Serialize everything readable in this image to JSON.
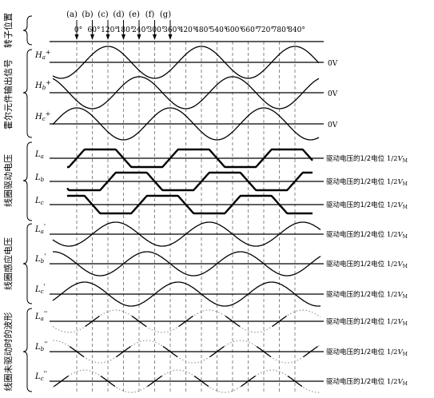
{
  "sections": {
    "rotor": "转子位置",
    "hall": "霍尔元件输出信号",
    "drive": "线圈驱动电压",
    "induced": "线圈感应电压",
    "undriven": "线圈未驱动时的波形"
  },
  "markers": [
    "(a)",
    "(b)",
    "(c)",
    "(d)",
    "(e)",
    "(f)",
    "(g)"
  ],
  "angles": [
    "0°",
    "60°",
    "120°",
    "180°",
    "240°",
    "300°",
    "360°",
    "420°",
    "480°",
    "540°",
    "600°",
    "660°",
    "720°",
    "780°",
    "840°"
  ],
  "hall_labels": [
    "Ha+",
    "Hb+",
    "Hc+"
  ],
  "zero_label": "0V",
  "drive_labels": [
    "La",
    "Lb",
    "Lc"
  ],
  "induced_labels": [
    "La'",
    "Lb'",
    "Lc'"
  ],
  "undriven_labels": [
    "La''",
    "Lb''",
    "Lc''"
  ],
  "ref_text": "驱动电压的1/2电位",
  "ref_half": "1/2",
  "ref_v": "V",
  "ref_sub": "M"
}
